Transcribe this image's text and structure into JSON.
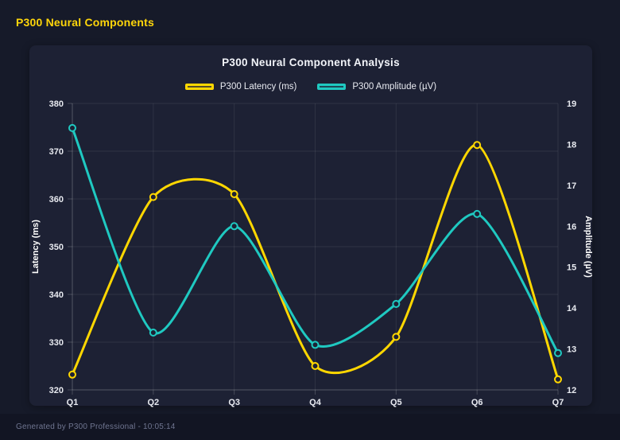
{
  "header": {
    "title": "P300 Neural Components",
    "color": "#ffd60a"
  },
  "footer": {
    "text": "Generated by P300 Professional - 10:05:14"
  },
  "chart_data": {
    "type": "line",
    "title": "P300 Neural Component Analysis",
    "categories": [
      "Q1",
      "Q2",
      "Q3",
      "Q4",
      "Q5",
      "Q6",
      "Q7"
    ],
    "series": [
      {
        "name": "P300 Latency (ms)",
        "axis": "left",
        "color": "#ffd700",
        "values": [
          323.2,
          360.4,
          361.0,
          325.0,
          331.1,
          371.3,
          322.2
        ]
      },
      {
        "name": "P300 Amplitude (µV)",
        "axis": "right",
        "color": "#1fc9c1",
        "values": [
          18.4,
          13.4,
          16.0,
          13.1,
          14.1,
          16.3,
          12.9
        ]
      }
    ],
    "left_axis": {
      "label": "Latency (ms)",
      "min": 320,
      "max": 380,
      "step": 10
    },
    "right_axis": {
      "label": "Amplitude (µV)",
      "min": 12,
      "max": 19,
      "step": 1
    },
    "grid": true,
    "legend_position": "top",
    "line_tension": "smooth"
  },
  "style": {
    "page_bg": "#161a29",
    "card_bg": "#1d2134",
    "grid_color": "rgba(255,255,255,0.08)",
    "axis_border_color": "rgba(255,255,255,0.18)",
    "tick_text_color": "#e8eaf0",
    "axis_title_color": "#ffffff"
  }
}
